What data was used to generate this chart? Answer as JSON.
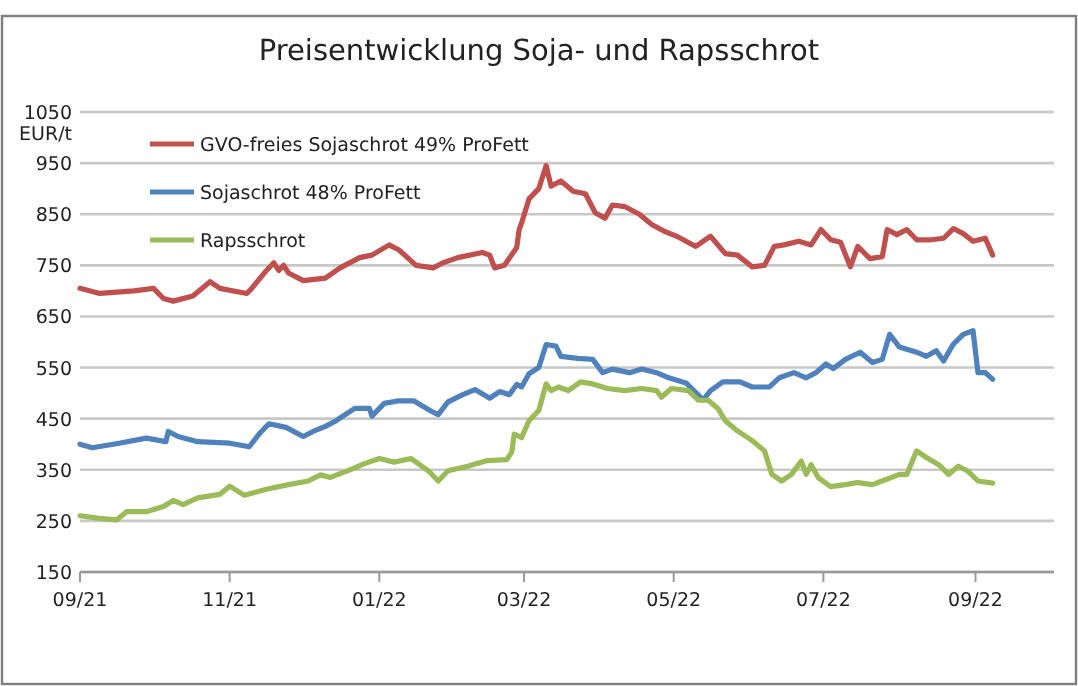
{
  "chart_data": {
    "type": "line",
    "title": "Preisentwicklung Soja- und Rapsschrot",
    "ylabel": "EUR/t",
    "xlim": [
      "2021-09-01",
      "2022-10-03"
    ],
    "xticks": [
      {
        "value": "2021-09-01",
        "label": "09/21"
      },
      {
        "value": "2021-11-01",
        "label": "11/21"
      },
      {
        "value": "2022-01-01",
        "label": "01/22"
      },
      {
        "value": "2022-03-01",
        "label": "03/22"
      },
      {
        "value": "2022-05-01",
        "label": "05/22"
      },
      {
        "value": "2022-07-01",
        "label": "07/22"
      },
      {
        "value": "2022-09-01",
        "label": "09/22"
      }
    ],
    "ylim": [
      150,
      1050
    ],
    "yticks": [
      150,
      250,
      350,
      450,
      550,
      650,
      750,
      850,
      950,
      1050
    ],
    "grid": "y",
    "legend": "top left",
    "marker": "none",
    "line_style": "solid",
    "series": [
      {
        "name": "GVO-freies Sojaschrot 49% ProFett",
        "color": "#c0504d",
        "x": [
          "2021-09-01",
          "2021-09-09",
          "2021-09-23",
          "2021-10-01",
          "2021-10-05",
          "2021-10-09",
          "2021-10-17",
          "2021-10-24",
          "2021-10-28",
          "2021-11-08",
          "2021-11-10",
          "2021-11-16",
          "2021-11-19",
          "2021-11-21",
          "2021-11-23",
          "2021-11-25",
          "2021-12-01",
          "2021-12-10",
          "2021-12-16",
          "2021-12-24",
          "2021-12-29",
          "2022-01-05",
          "2022-01-09",
          "2022-01-16",
          "2022-01-23",
          "2022-01-27",
          "2022-02-02",
          "2022-02-12",
          "2022-02-15",
          "2022-02-17",
          "2022-02-21",
          "2022-02-26",
          "2022-02-27",
          "2022-02-28",
          "2022-03-03",
          "2022-03-07",
          "2022-03-10",
          "2022-03-12",
          "2022-03-16",
          "2022-03-21",
          "2022-03-26",
          "2022-03-30",
          "2022-04-03",
          "2022-04-06",
          "2022-04-11",
          "2022-04-17",
          "2022-04-22",
          "2022-04-27",
          "2022-05-03",
          "2022-05-10",
          "2022-05-16",
          "2022-05-22",
          "2022-05-27",
          "2022-06-02",
          "2022-06-07",
          "2022-06-11",
          "2022-06-15",
          "2022-06-21",
          "2022-06-26",
          "2022-06-30",
          "2022-07-04",
          "2022-07-08",
          "2022-07-12",
          "2022-07-15",
          "2022-07-20",
          "2022-07-25",
          "2022-07-27",
          "2022-07-31",
          "2022-08-04",
          "2022-08-08",
          "2022-08-14",
          "2022-08-19",
          "2022-08-23",
          "2022-08-27",
          "2022-08-31",
          "2022-09-05",
          "2022-09-08"
        ],
        "values": [
          705,
          695,
          700,
          705,
          685,
          680,
          690,
          718,
          705,
          695,
          705,
          740,
          755,
          740,
          750,
          735,
          720,
          725,
          745,
          765,
          770,
          790,
          780,
          750,
          745,
          755,
          765,
          775,
          770,
          745,
          750,
          785,
          820,
          833,
          880,
          900,
          945,
          905,
          915,
          895,
          890,
          853,
          842,
          868,
          865,
          850,
          830,
          817,
          805,
          787,
          807,
          773,
          770,
          747,
          750,
          787,
          790,
          797,
          790,
          820,
          800,
          795,
          747,
          787,
          763,
          767,
          820,
          810,
          820,
          800,
          800,
          803,
          822,
          812,
          797,
          803,
          770
        ]
      },
      {
        "name": "Sojaschrot 48% ProFett",
        "color": "#4f81bd",
        "x": [
          "2021-09-01",
          "2021-09-06",
          "2021-09-17",
          "2021-09-28",
          "2021-10-06",
          "2021-10-07",
          "2021-10-11",
          "2021-10-19",
          "2021-11-01",
          "2021-11-09",
          "2021-11-13",
          "2021-11-17",
          "2021-11-24",
          "2021-12-01",
          "2021-12-05",
          "2021-12-10",
          "2021-12-14",
          "2021-12-22",
          "2021-12-28",
          "2021-12-29",
          "2022-01-03",
          "2022-01-09",
          "2022-01-15",
          "2022-01-22",
          "2022-01-25",
          "2022-01-29",
          "2022-02-04",
          "2022-02-09",
          "2022-02-15",
          "2022-02-19",
          "2022-02-23",
          "2022-02-26",
          "2022-02-28",
          "2022-03-03",
          "2022-03-07",
          "2022-03-10",
          "2022-03-14",
          "2022-03-16",
          "2022-03-23",
          "2022-03-29",
          "2022-04-02",
          "2022-04-06",
          "2022-04-13",
          "2022-04-18",
          "2022-04-24",
          "2022-04-29",
          "2022-05-06",
          "2022-05-13",
          "2022-05-16",
          "2022-05-21",
          "2022-05-28",
          "2022-06-02",
          "2022-06-09",
          "2022-06-13",
          "2022-06-19",
          "2022-06-24",
          "2022-06-28",
          "2022-07-02",
          "2022-07-05",
          "2022-07-10",
          "2022-07-16",
          "2022-07-21",
          "2022-07-25",
          "2022-07-28",
          "2022-08-01",
          "2022-08-08",
          "2022-08-12",
          "2022-08-16",
          "2022-08-19",
          "2022-08-23",
          "2022-08-27",
          "2022-08-31",
          "2022-09-02",
          "2022-09-05",
          "2022-09-08"
        ],
        "values": [
          400,
          393,
          402,
          412,
          405,
          425,
          415,
          405,
          402,
          395,
          420,
          440,
          433,
          415,
          425,
          435,
          445,
          470,
          470,
          455,
          480,
          485,
          485,
          465,
          458,
          483,
          497,
          507,
          490,
          503,
          497,
          517,
          512,
          538,
          550,
          595,
          592,
          572,
          568,
          566,
          540,
          547,
          540,
          547,
          540,
          530,
          520,
          487,
          505,
          522,
          522,
          512,
          512,
          530,
          540,
          530,
          540,
          557,
          548,
          566,
          580,
          560,
          566,
          615,
          590,
          580,
          572,
          583,
          563,
          596,
          615,
          622,
          540,
          540,
          527
        ]
      },
      {
        "name": "Rapsschrot",
        "color": "#9bbb59",
        "x": [
          "2021-09-01",
          "2021-09-09",
          "2021-09-16",
          "2021-09-20",
          "2021-09-28",
          "2021-10-05",
          "2021-10-09",
          "2021-10-13",
          "2021-10-19",
          "2021-10-28",
          "2021-11-01",
          "2021-11-07",
          "2021-11-16",
          "2021-11-24",
          "2021-12-03",
          "2021-12-08",
          "2021-12-12",
          "2021-12-19",
          "2021-12-26",
          "2022-01-01",
          "2022-01-07",
          "2022-01-14",
          "2022-01-21",
          "2022-01-25",
          "2022-01-29",
          "2022-02-06",
          "2022-02-14",
          "2022-02-22",
          "2022-02-24",
          "2022-02-25",
          "2022-02-28",
          "2022-03-03",
          "2022-03-07",
          "2022-03-10",
          "2022-03-12",
          "2022-03-15",
          "2022-03-19",
          "2022-03-24",
          "2022-03-29",
          "2022-04-04",
          "2022-04-11",
          "2022-04-18",
          "2022-04-24",
          "2022-04-26",
          "2022-04-30",
          "2022-05-07",
          "2022-05-11",
          "2022-05-15",
          "2022-05-19",
          "2022-05-22",
          "2022-05-27",
          "2022-06-02",
          "2022-06-07",
          "2022-06-10",
          "2022-06-14",
          "2022-06-18",
          "2022-06-22",
          "2022-06-24",
          "2022-06-26",
          "2022-06-29",
          "2022-07-04",
          "2022-07-10",
          "2022-07-15",
          "2022-07-21",
          "2022-07-26",
          "2022-08-01",
          "2022-08-04",
          "2022-08-08",
          "2022-08-12",
          "2022-08-17",
          "2022-08-21",
          "2022-08-25",
          "2022-08-29",
          "2022-09-02",
          "2022-09-08"
        ],
        "values": [
          260,
          255,
          252,
          268,
          268,
          278,
          290,
          282,
          295,
          302,
          318,
          300,
          312,
          320,
          328,
          340,
          335,
          348,
          362,
          372,
          365,
          372,
          348,
          328,
          348,
          357,
          368,
          370,
          385,
          420,
          413,
          446,
          466,
          518,
          505,
          512,
          505,
          522,
          518,
          509,
          505,
          509,
          505,
          492,
          509,
          505,
          486,
          486,
          470,
          446,
          426,
          407,
          387,
          341,
          328,
          341,
          367,
          341,
          360,
          334,
          317,
          321,
          325,
          321,
          330,
          341,
          341,
          387,
          374,
          360,
          341,
          357,
          347,
          328,
          324
        ]
      }
    ]
  }
}
